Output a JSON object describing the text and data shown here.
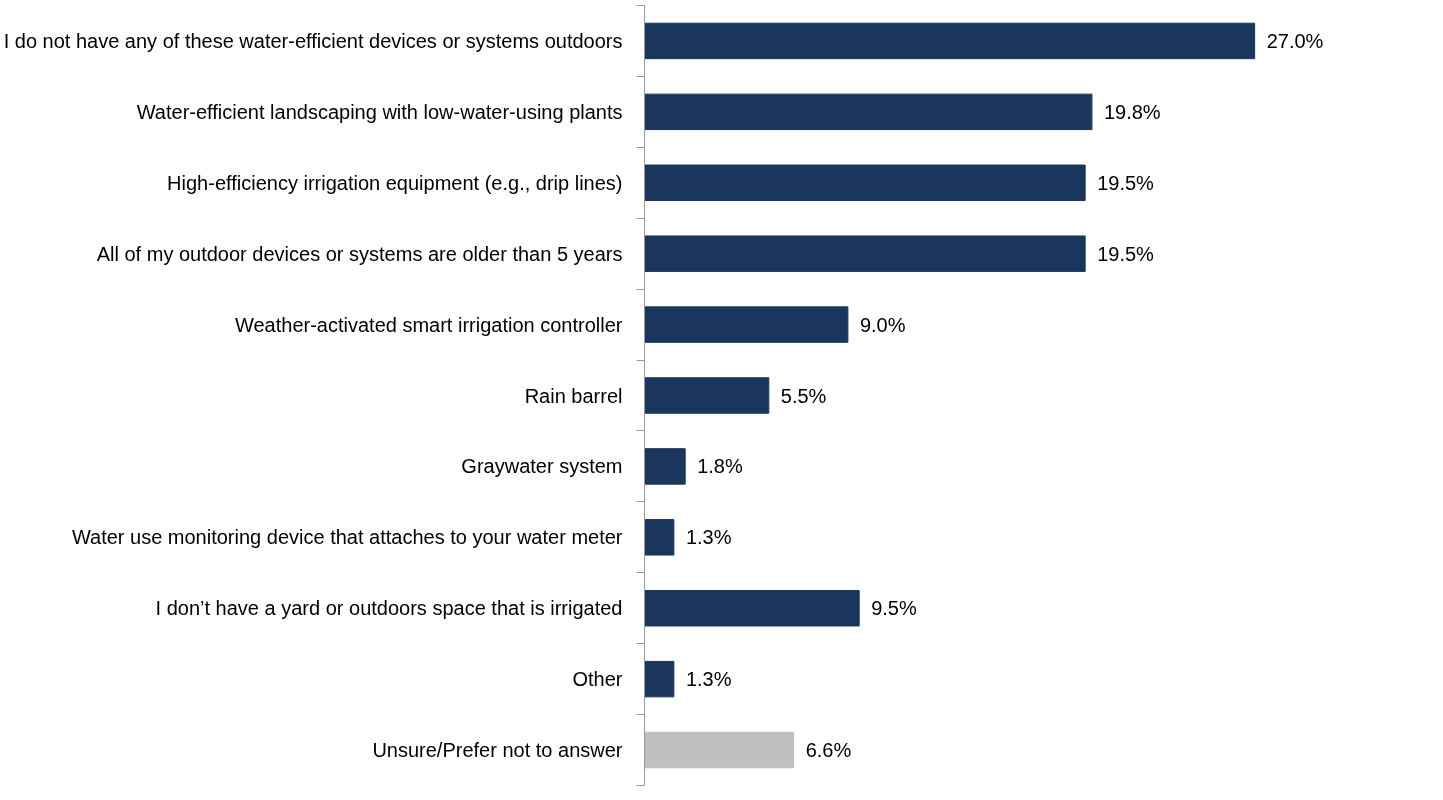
{
  "chart_data": {
    "type": "bar",
    "orientation": "horizontal",
    "grid": false,
    "categories": [
      "I do not have any of these water-efficient devices or systems outdoors",
      "Water-efficient landscaping with low-water-using plants",
      "High-efficiency irrigation equipment (e.g., drip lines)",
      "All of my outdoor devices or systems are older than 5 years",
      "Weather-activated smart irrigation controller",
      "Rain barrel",
      "Graywater system",
      "Water use monitoring device that attaches to your water meter",
      "I don’t have a yard or outdoors space that is irrigated",
      "Other",
      "Unsure/Prefer not to answer"
    ],
    "values": [
      27.0,
      19.8,
      19.5,
      19.5,
      9.0,
      5.5,
      1.8,
      1.3,
      9.5,
      1.3,
      6.6
    ],
    "value_labels": [
      "27.0%",
      "19.8%",
      "19.5%",
      "19.5%",
      "9.0%",
      "5.5%",
      "1.8%",
      "1.3%",
      "9.5%",
      "1.3%",
      "6.6%"
    ],
    "colors": [
      "#1b365d",
      "#1b365d",
      "#1b365d",
      "#1b365d",
      "#1b365d",
      "#1b365d",
      "#1b365d",
      "#1b365d",
      "#1b365d",
      "#1b365d",
      "#bfbfbf"
    ]
  }
}
